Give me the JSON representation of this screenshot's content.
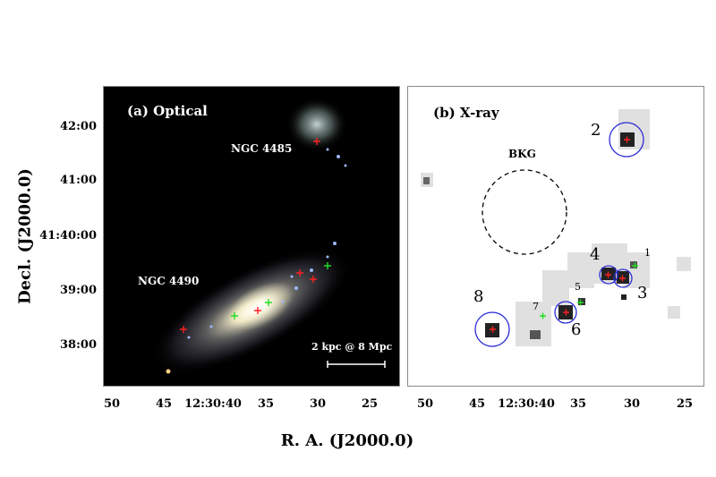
{
  "panels": {
    "optical": {
      "title": "(a) Optical",
      "galaxy_top": "NGC 4485",
      "galaxy_bottom": "NGC 4490",
      "scale_bar": "2 kpc @ 8 Mpc"
    },
    "xray": {
      "title": "(b) X-ray",
      "background_region": "BKG",
      "sources": [
        "1",
        "2",
        "3",
        "4",
        "5",
        "6",
        "7",
        "8"
      ]
    }
  },
  "axes": {
    "y_label": "Decl. (J2000.0)",
    "x_label": "R. A. (J2000.0)",
    "y_ticks": [
      "42:00",
      "41:00",
      "41:40:00",
      "39:00",
      "38:00"
    ],
    "x_ticks_left": [
      "50",
      "45",
      "12:30:40",
      "35",
      "30",
      "25"
    ],
    "x_ticks_right": [
      "50",
      "45",
      "12:30:40",
      "35",
      "30",
      "25"
    ]
  },
  "colors": {
    "marker_red": "#ff2020",
    "marker_green": "#22dd22",
    "circle_blue": "#2b2bd6"
  }
}
